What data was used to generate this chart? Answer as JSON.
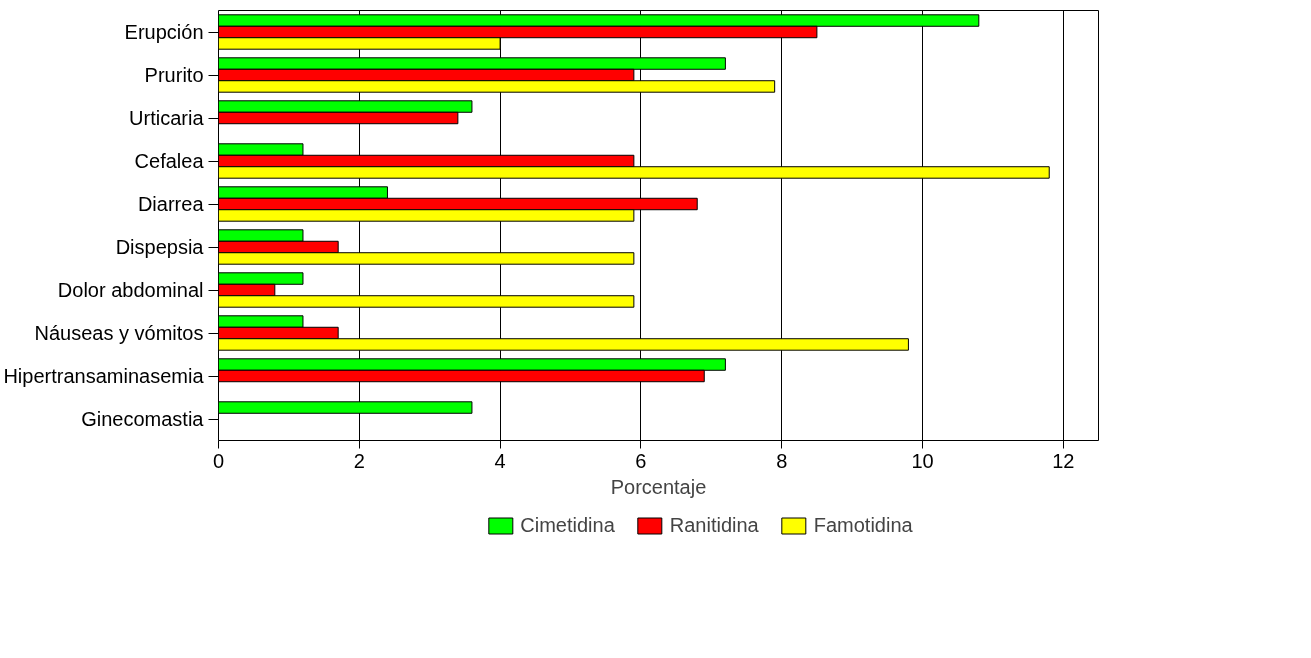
{
  "chart_data": {
    "type": "bar",
    "orientation": "horizontal",
    "xlabel": "Porcentaje",
    "categories": [
      "Erupción",
      "Prurito",
      "Urticaria",
      "Cefalea",
      "Diarrea",
      "Dispepsia",
      "Dolor abdominal",
      "Náuseas y vómitos",
      "Hipertransaminasemia",
      "Ginecomastia"
    ],
    "series": [
      {
        "name": "Cimetidina",
        "color": "#00ff00",
        "values": [
          10.8,
          7.2,
          3.6,
          1.2,
          2.4,
          1.2,
          1.2,
          1.2,
          7.2,
          3.6
        ]
      },
      {
        "name": "Ranitidina",
        "color": "#ff0000",
        "values": [
          8.5,
          5.9,
          3.4,
          5.9,
          6.8,
          1.7,
          0.8,
          1.7,
          6.9,
          null
        ]
      },
      {
        "name": "Famotidina",
        "color": "#ffff00",
        "values": [
          4.0,
          7.9,
          null,
          11.8,
          5.9,
          5.9,
          5.9,
          9.8,
          null,
          null
        ]
      }
    ],
    "xlim": [
      0,
      12.5
    ],
    "xticks": [
      0,
      2,
      4,
      6,
      8,
      10,
      12
    ],
    "grid": "x",
    "legend": "bottom"
  }
}
